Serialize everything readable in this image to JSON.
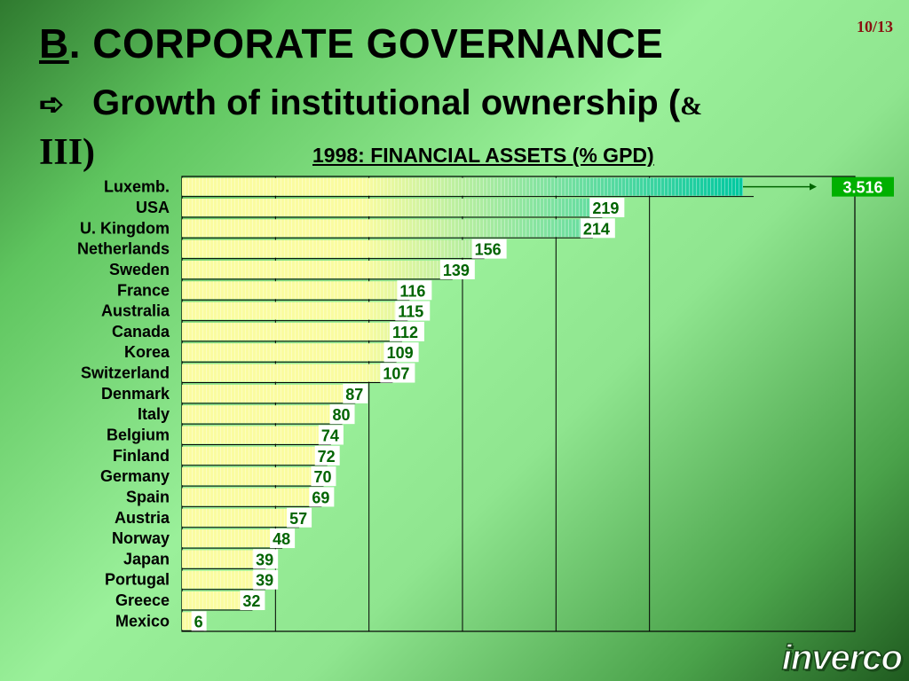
{
  "page": "10/13",
  "title_letter": "B",
  "title_rest": ". CORPORATE GOVERNANCE",
  "subtitle_arrow": "➪",
  "subtitle_main": "Growth of institutional ownership (",
  "subtitle_amp": "&",
  "subtitle_line2": "III)",
  "logo": "inverco",
  "colors": {
    "bar_start": "#fafca0",
    "bar_end": "#00c8a0",
    "label_green": "#006400",
    "callout_bg": "#00b000"
  },
  "chart_data": {
    "type": "bar",
    "orientation": "horizontal",
    "title": "1998: FINANCIAL ASSETS (% GPD)",
    "categories": [
      "Luxemb.",
      "USA",
      "U. Kingdom",
      "Netherlands",
      "Sweden",
      "France",
      "Australia",
      "Canada",
      "Korea",
      "Switzerland",
      "Denmark",
      "Italy",
      "Belgium",
      "Finland",
      "Germany",
      "Spain",
      "Austria",
      "Norway",
      "Japan",
      "Portugal",
      "Greece",
      "Mexico"
    ],
    "values": [
      3516,
      219,
      214,
      156,
      139,
      116,
      115,
      112,
      109,
      107,
      87,
      80,
      74,
      72,
      70,
      69,
      57,
      48,
      39,
      39,
      32,
      6
    ],
    "value_labels": [
      "3.516",
      "219",
      "214",
      "156",
      "139",
      "116",
      "115",
      "112",
      "109",
      "107",
      "87",
      "80",
      "74",
      "72",
      "70",
      "69",
      "57",
      "48",
      "39",
      "39",
      "32",
      "6"
    ],
    "xlim": [
      0,
      300
    ],
    "grid": true,
    "overflow_callout": "3.516"
  }
}
